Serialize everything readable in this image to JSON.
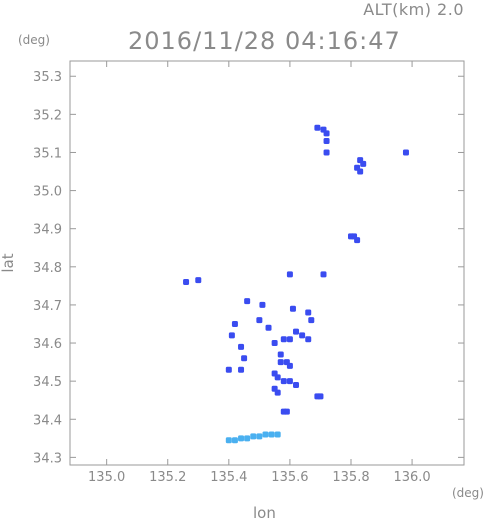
{
  "header": {
    "altitude_label": "ALT(km) 2.0",
    "timestamp": "2016/11/28 04:16:47"
  },
  "chart_data": {
    "type": "scatter",
    "title": "2016/11/28 04:16:47",
    "xlabel": "lon",
    "ylabel": "lat",
    "x_unit": "(deg)",
    "y_unit": "(deg)",
    "xlim": [
      134.88,
      136.17
    ],
    "ylim": [
      34.28,
      35.34
    ],
    "x_ticks": [
      "135.0",
      "135.2",
      "135.4",
      "135.6",
      "135.8",
      "136.0"
    ],
    "y_ticks": [
      "34.3",
      "34.4",
      "34.5",
      "34.6",
      "34.7",
      "34.8",
      "34.9",
      "35.0",
      "35.1",
      "35.2",
      "35.3"
    ],
    "grid": false,
    "series": [
      {
        "color": "#3a4cf0",
        "points": [
          [
            135.69,
            35.165
          ],
          [
            135.71,
            35.16
          ],
          [
            135.72,
            35.15
          ],
          [
            135.72,
            35.13
          ],
          [
            135.72,
            35.1
          ],
          [
            135.83,
            35.08
          ],
          [
            135.84,
            35.07
          ],
          [
            135.82,
            35.06
          ],
          [
            135.83,
            35.05
          ],
          [
            135.98,
            35.1
          ],
          [
            135.8,
            34.88
          ],
          [
            135.81,
            34.88
          ],
          [
            135.82,
            34.87
          ],
          [
            135.26,
            34.76
          ],
          [
            135.3,
            34.765
          ],
          [
            135.71,
            34.78
          ],
          [
            135.6,
            34.78
          ],
          [
            135.46,
            34.71
          ],
          [
            135.51,
            34.7
          ],
          [
            135.61,
            34.69
          ],
          [
            135.66,
            34.68
          ],
          [
            135.67,
            34.66
          ],
          [
            135.42,
            34.65
          ],
          [
            135.5,
            34.66
          ],
          [
            135.53,
            34.64
          ],
          [
            135.62,
            34.63
          ],
          [
            135.64,
            34.62
          ],
          [
            135.41,
            34.62
          ],
          [
            135.44,
            34.59
          ],
          [
            135.55,
            34.6
          ],
          [
            135.58,
            34.61
          ],
          [
            135.6,
            34.61
          ],
          [
            135.66,
            34.61
          ],
          [
            135.57,
            34.57
          ],
          [
            135.57,
            34.55
          ],
          [
            135.59,
            34.55
          ],
          [
            135.6,
            34.54
          ],
          [
            135.55,
            34.52
          ],
          [
            135.56,
            34.51
          ],
          [
            135.58,
            34.5
          ],
          [
            135.6,
            34.5
          ],
          [
            135.62,
            34.49
          ],
          [
            135.55,
            34.48
          ],
          [
            135.56,
            34.47
          ],
          [
            135.45,
            34.56
          ],
          [
            135.4,
            34.53
          ],
          [
            135.44,
            34.53
          ],
          [
            135.69,
            34.46
          ],
          [
            135.7,
            34.46
          ],
          [
            135.58,
            34.42
          ],
          [
            135.59,
            34.42
          ]
        ]
      },
      {
        "color": "#4ab0f0",
        "points": [
          [
            135.4,
            34.345
          ],
          [
            135.42,
            34.345
          ],
          [
            135.44,
            34.35
          ],
          [
            135.46,
            34.35
          ],
          [
            135.48,
            34.355
          ],
          [
            135.5,
            34.355
          ],
          [
            135.52,
            34.36
          ],
          [
            135.54,
            34.36
          ],
          [
            135.56,
            34.36
          ]
        ]
      }
    ]
  }
}
